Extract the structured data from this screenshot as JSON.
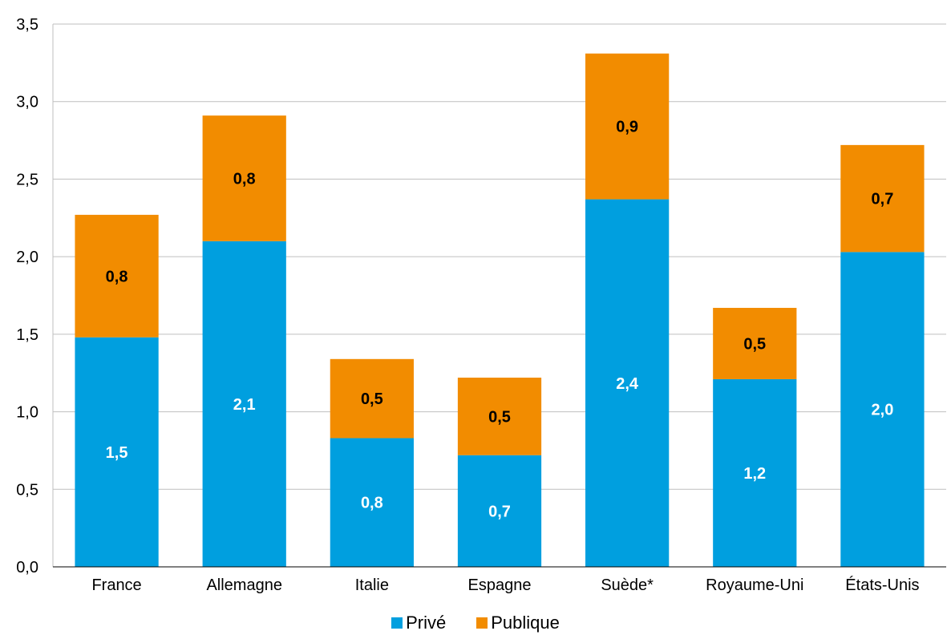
{
  "chart_data": {
    "type": "bar",
    "stacked": true,
    "categories": [
      "France",
      "Allemagne",
      "Italie",
      "Espagne",
      "Suède*",
      "Royaume-Uni",
      "États-Unis"
    ],
    "series": [
      {
        "name": "Privé",
        "color": "#009FDF",
        "values": [
          1.48,
          2.1,
          0.83,
          0.72,
          2.37,
          1.21,
          2.03
        ],
        "labels": [
          "1,5",
          "2,1",
          "0,8",
          "0,7",
          "2,4",
          "1,2",
          "2,0"
        ]
      },
      {
        "name": "Publique",
        "color": "#F28C00",
        "values": [
          0.79,
          0.81,
          0.51,
          0.5,
          0.94,
          0.46,
          0.69
        ],
        "labels": [
          "0,8",
          "0,8",
          "0,5",
          "0,5",
          "0,9",
          "0,5",
          "0,7"
        ]
      }
    ],
    "ylim": [
      0,
      3.5
    ],
    "yticks": [
      "0,0",
      "0,5",
      "1,0",
      "1,5",
      "2,0",
      "2,5",
      "3,0",
      "3,5"
    ],
    "grid": true,
    "legend": "bottom",
    "xlabel": "",
    "ylabel": "",
    "title": ""
  }
}
